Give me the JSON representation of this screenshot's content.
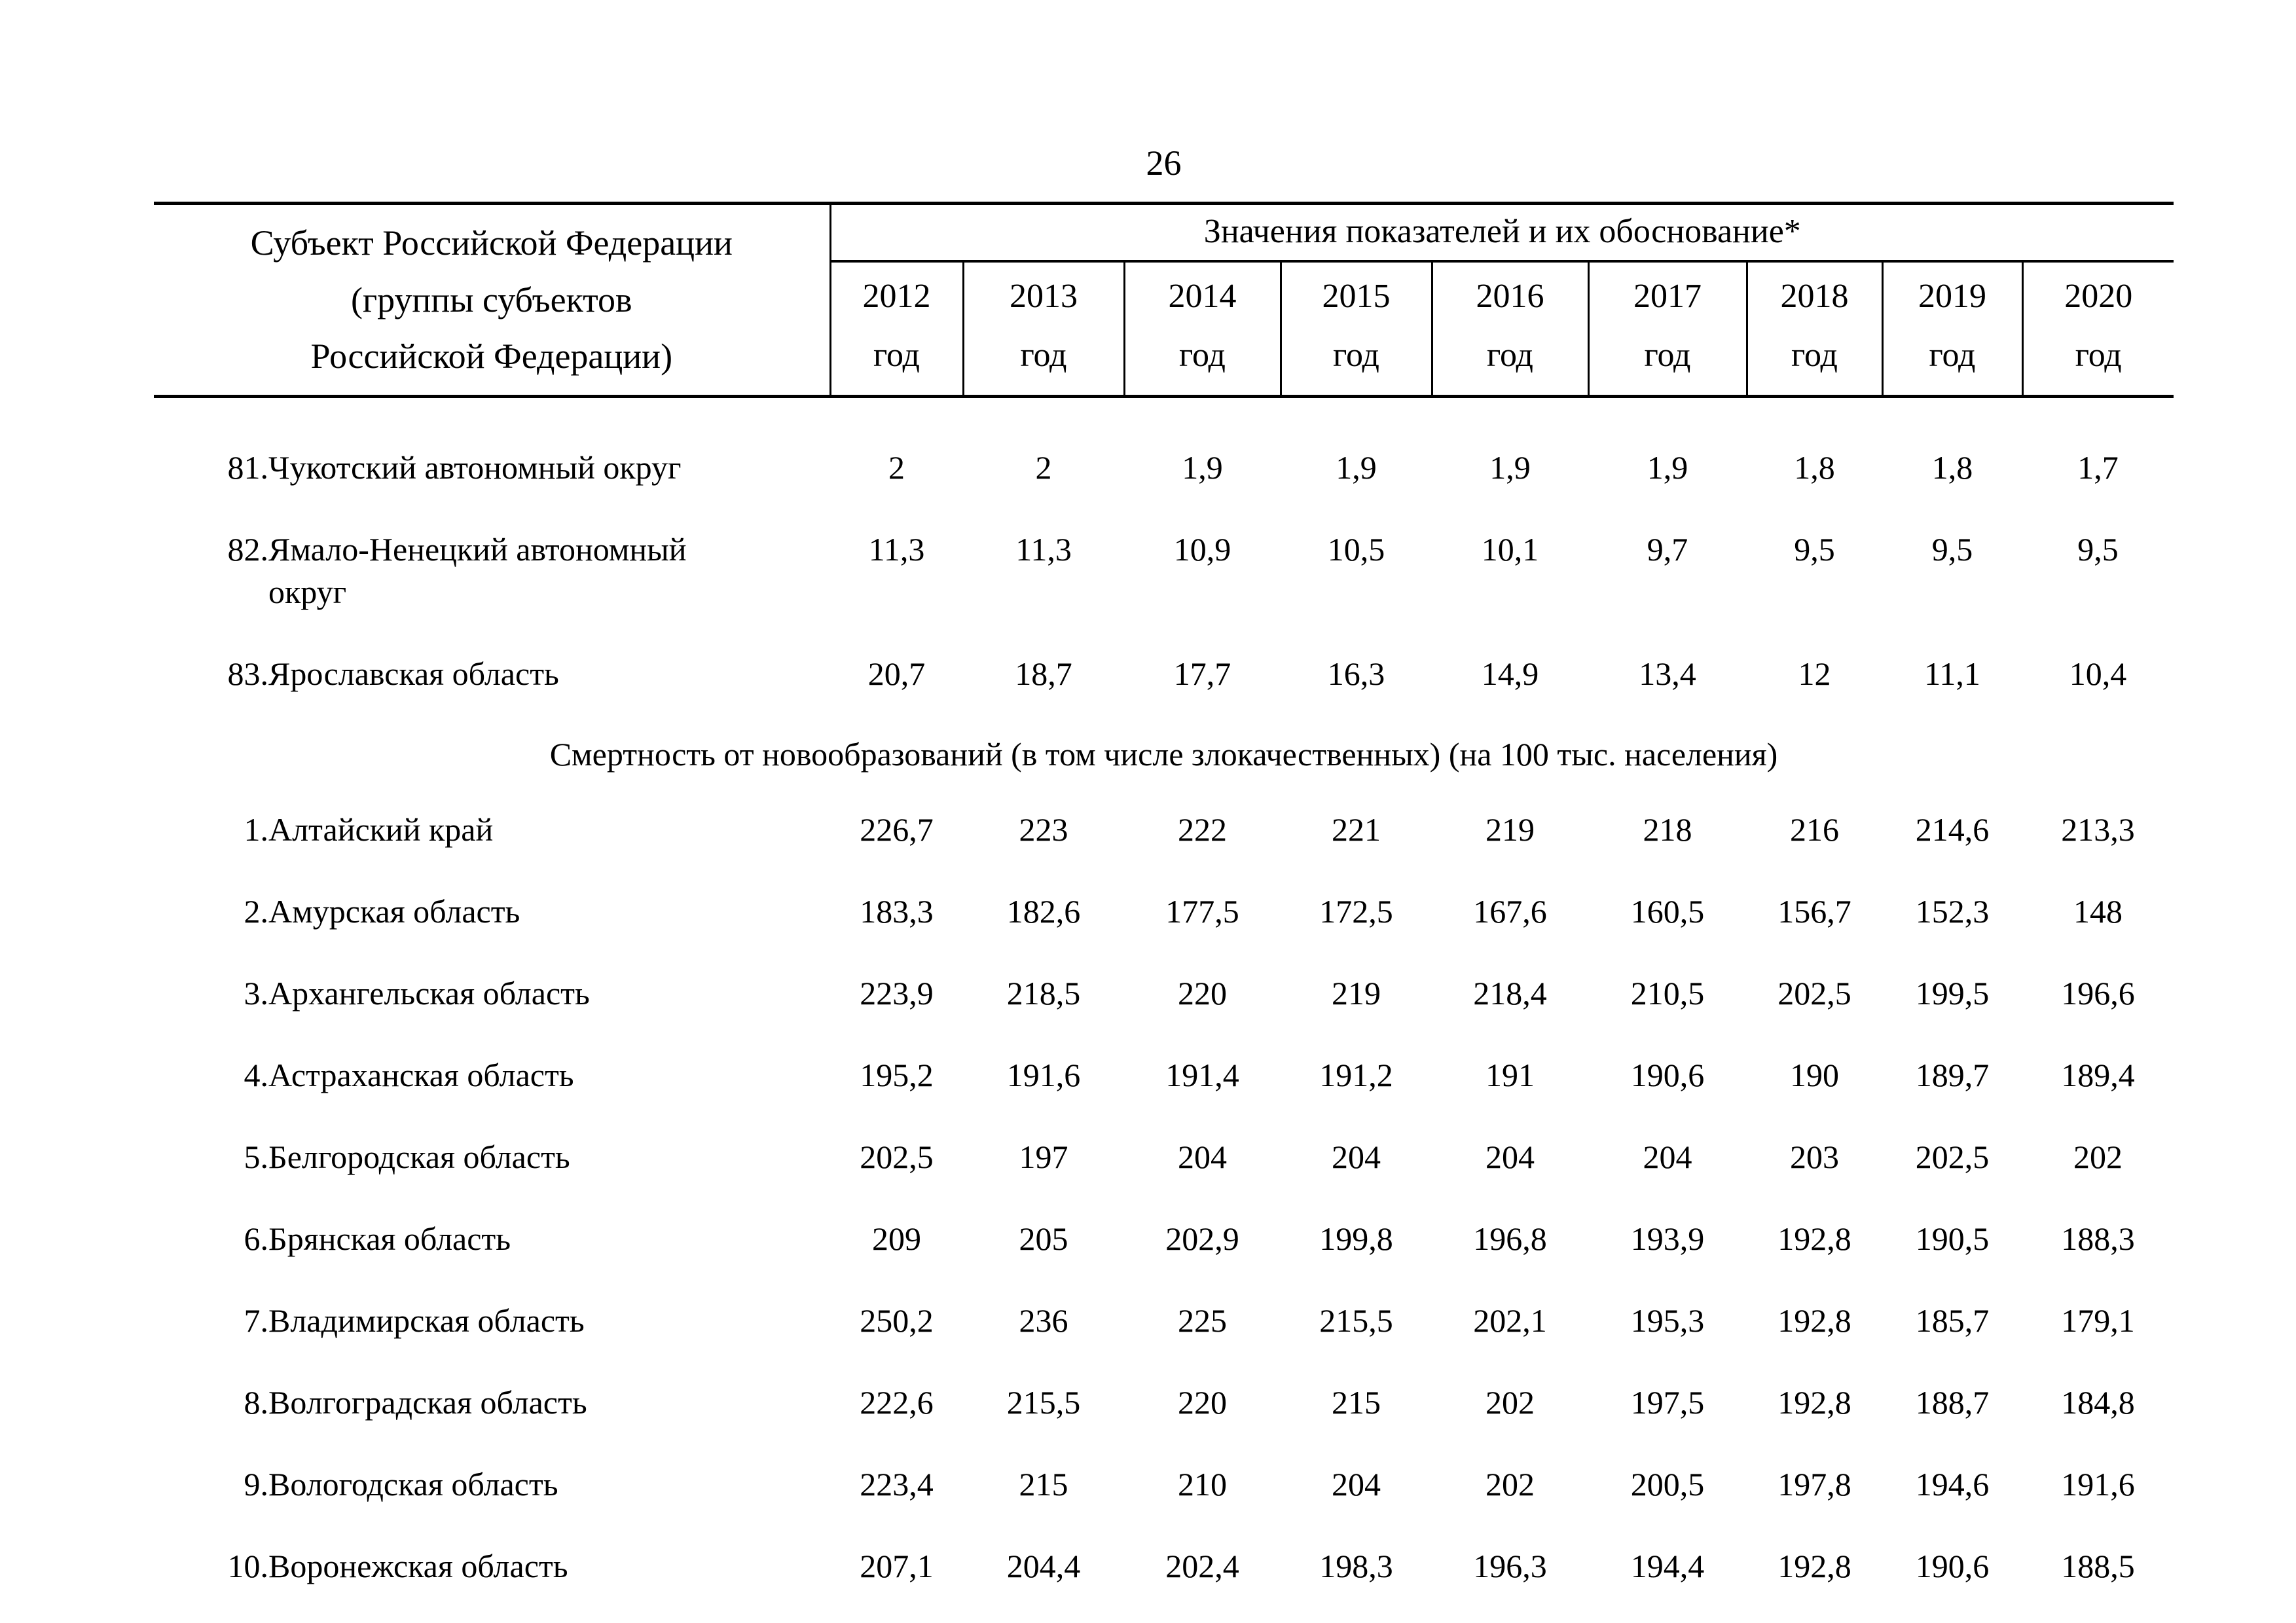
{
  "page": {
    "number": "26"
  },
  "table": {
    "col1_header_lines": [
      "Субъект Российской Федерации",
      "(группы субъектов",
      "Российской Федерации)"
    ],
    "values_header": "Значения показателей и их обоснование*",
    "year_label": "год",
    "years": [
      "2012",
      "2013",
      "2014",
      "2015",
      "2016",
      "2017",
      "2018",
      "2019",
      "2020"
    ],
    "rows": [
      {
        "num": "81.",
        "name": "Чукотский автономный округ",
        "values": [
          "2",
          "2",
          "1,9",
          "1,9",
          "1,9",
          "1,9",
          "1,8",
          "1,8",
          "1,7"
        ]
      },
      {
        "num": "82.",
        "name": "Ямало-Ненецкий автономный\nокруг",
        "values": [
          "11,3",
          "11,3",
          "10,9",
          "10,5",
          "10,1",
          "9,7",
          "9,5",
          "9,5",
          "9,5"
        ]
      },
      {
        "num": "83.",
        "name": "Ярославская область",
        "values": [
          "20,7",
          "18,7",
          "17,7",
          "16,3",
          "14,9",
          "13,4",
          "12",
          "11,1",
          "10,4"
        ]
      },
      {
        "section": "Смертность от новообразований (в том числе злокачественных) (на 100 тыс. населения)"
      },
      {
        "num": "1.",
        "name": "Алтайский край",
        "values": [
          "226,7",
          "223",
          "222",
          "221",
          "219",
          "218",
          "216",
          "214,6",
          "213,3"
        ]
      },
      {
        "num": "2.",
        "name": "Амурская область",
        "values": [
          "183,3",
          "182,6",
          "177,5",
          "172,5",
          "167,6",
          "160,5",
          "156,7",
          "152,3",
          "148"
        ]
      },
      {
        "num": "3.",
        "name": "Архангельская область",
        "values": [
          "223,9",
          "218,5",
          "220",
          "219",
          "218,4",
          "210,5",
          "202,5",
          "199,5",
          "196,6"
        ]
      },
      {
        "num": "4.",
        "name": "Астраханская область",
        "values": [
          "195,2",
          "191,6",
          "191,4",
          "191,2",
          "191",
          "190,6",
          "190",
          "189,7",
          "189,4"
        ]
      },
      {
        "num": "5.",
        "name": "Белгородская область",
        "values": [
          "202,5",
          "197",
          "204",
          "204",
          "204",
          "204",
          "203",
          "202,5",
          "202"
        ]
      },
      {
        "num": "6.",
        "name": "Брянская область",
        "values": [
          "209",
          "205",
          "202,9",
          "199,8",
          "196,8",
          "193,9",
          "192,8",
          "190,5",
          "188,3"
        ]
      },
      {
        "num": "7.",
        "name": "Владимирская область",
        "values": [
          "250,2",
          "236",
          "225",
          "215,5",
          "202,1",
          "195,3",
          "192,8",
          "185,7",
          "179,1"
        ]
      },
      {
        "num": "8.",
        "name": "Волгоградская область",
        "values": [
          "222,6",
          "215,5",
          "220",
          "215",
          "202",
          "197,5",
          "192,8",
          "188,7",
          "184,8"
        ]
      },
      {
        "num": "9.",
        "name": "Вологодская область",
        "values": [
          "223,4",
          "215",
          "210",
          "204",
          "202",
          "200,5",
          "197,8",
          "194,6",
          "191,6"
        ]
      },
      {
        "num": "10.",
        "name": "Воронежская область",
        "values": [
          "207,1",
          "204,4",
          "202,4",
          "198,3",
          "196,3",
          "194,4",
          "192,8",
          "190,6",
          "188,5"
        ]
      }
    ]
  }
}
